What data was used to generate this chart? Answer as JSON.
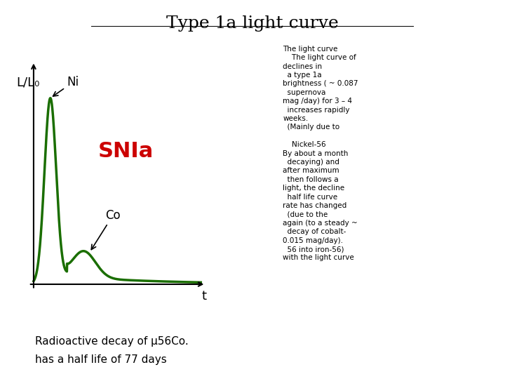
{
  "title": "Type 1a light curve",
  "ylabel": "L/L₀",
  "xlabel": "t",
  "curve_color": "#1a6e00",
  "snia_label": "SNIa",
  "snia_color": "#cc0000",
  "ni_label": "Ni",
  "co_label": "Co",
  "bottom_text_line1": "Radioactive decay of µ56Co.",
  "bottom_text_line2": "has a half life of 77 days",
  "right_text": "The light curve\n    The light curve of\ndeclines in\n  a type 1a\nbriɡhtness ( ~ 0.087\n  supernova\nmag /day) for 3 – 4\n  increases rapidly\nweeks.\n  (Mainly due to\n\n    Nickel-56\nBy about a month\n  decaying) and\nafter maximum\n  then follows a\nlight, the decline\n  half life curve\nrate has changed\n  (due to the\nagain (to a steady ~\n  decay of cobalt-\n0.015 mag/day).\n  56 into iron-56)\nwith the light curve",
  "background": "#ffffff"
}
